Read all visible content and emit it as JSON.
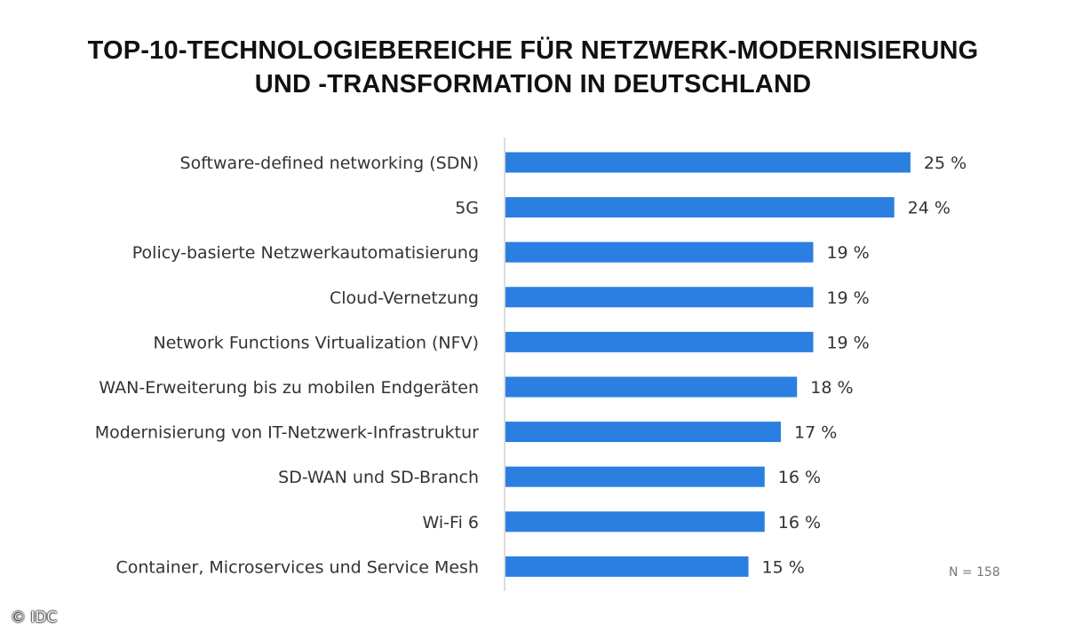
{
  "title": {
    "line1": "TOP-10-TECHNOLOGIEBEREICHE FÜR NETZWERK-MODERNISIERUNG",
    "line2": "UND -TRANSFORMATION IN DEUTSCHLAND"
  },
  "chart_data": {
    "type": "bar",
    "orientation": "horizontal",
    "title": "TOP-10-TECHNOLOGIEBEREICHE FÜR NETZWERK-MODERNISIERUNG UND -TRANSFORMATION IN DEUTSCHLAND",
    "categories": [
      "Software-defined networking (SDN)",
      "5G",
      "Policy-basierte Netzwerkautomatisierung",
      "Cloud-Vernetzung",
      "Network Functions Virtualization (NFV)",
      "WAN-Erweiterung bis zu mobilen Endgeräten",
      "Modernisierung von IT-Netzwerk-Infrastruktur",
      "SD-WAN und SD-Branch",
      "Wi-Fi 6",
      "Container, Microservices und Service Mesh"
    ],
    "values": [
      25,
      24,
      19,
      19,
      19,
      18,
      17,
      16,
      16,
      15
    ],
    "value_labels": [
      "25 %",
      "24 %",
      "19 %",
      "19 %",
      "19 %",
      "18 %",
      "17 %",
      "16 %",
      "16 %",
      "15 %"
    ],
    "unit": "%",
    "xlim": [
      0,
      34
    ],
    "bar_color": "#2a7fe0",
    "axis_color": "#d0d0d0",
    "grid": false,
    "legend": "none"
  },
  "note": "N = 158",
  "copyright": "© IDC"
}
